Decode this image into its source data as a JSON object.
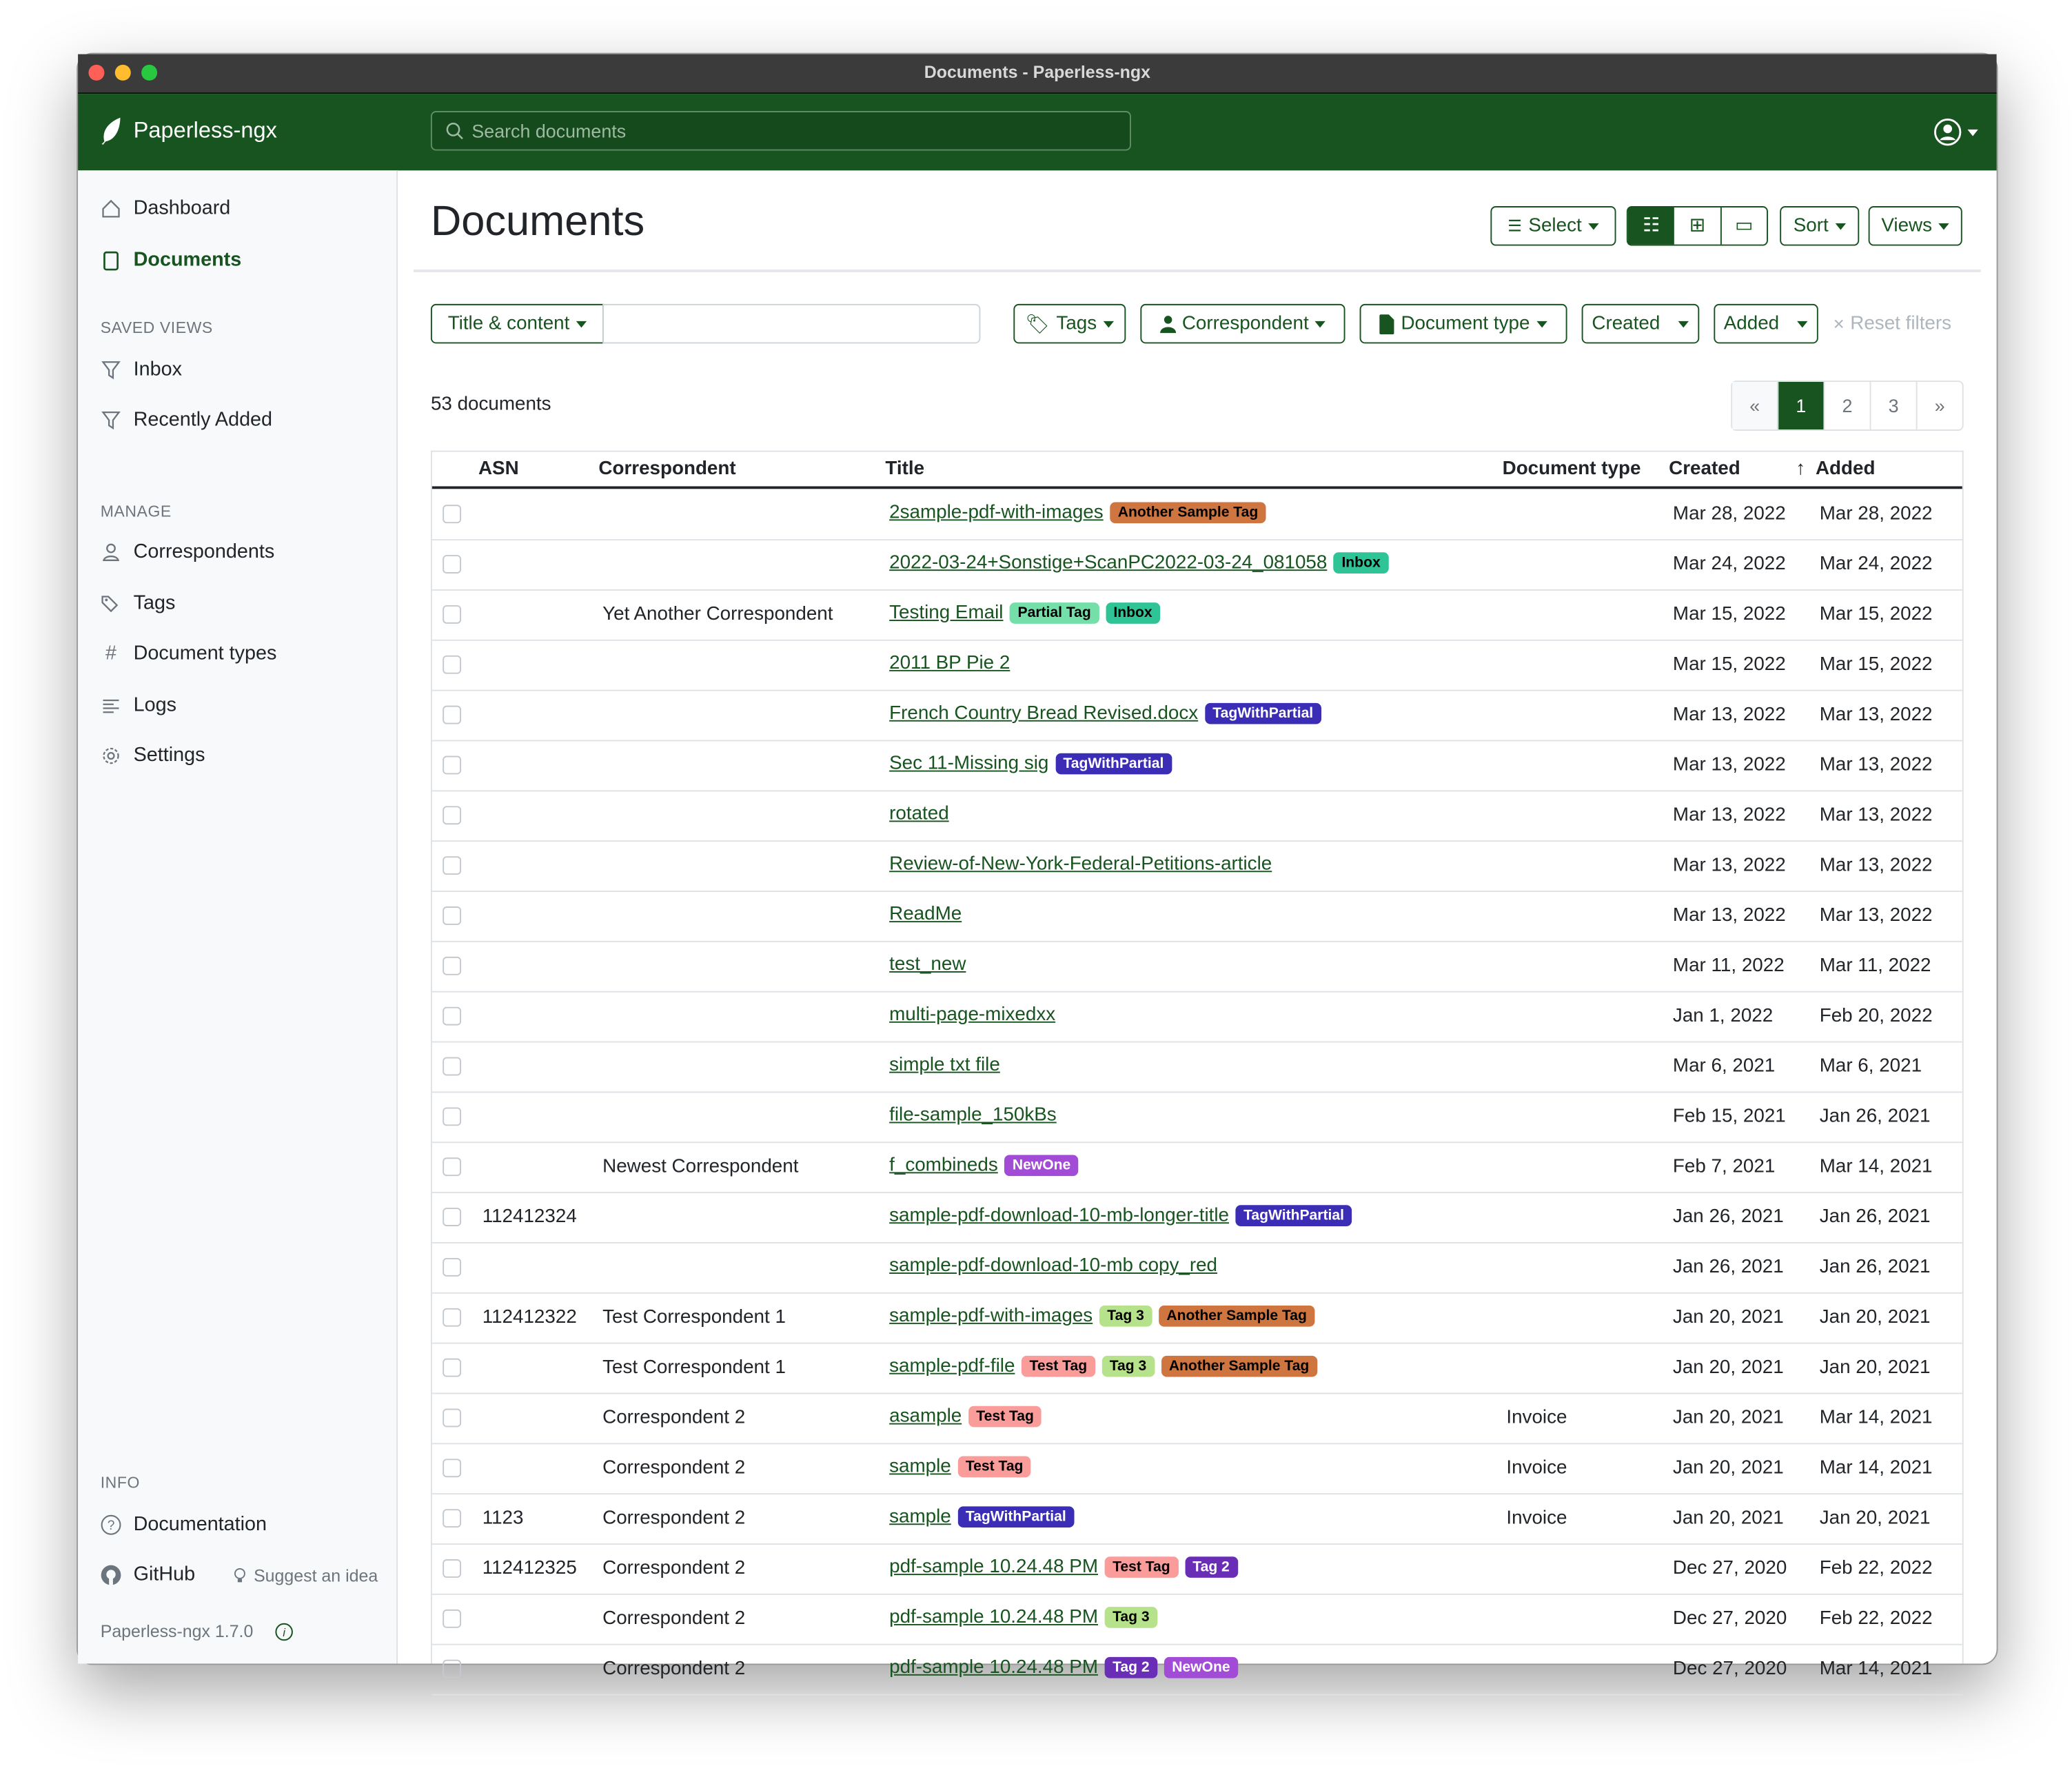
{
  "window_title": "Documents - Paperless-ngx",
  "app_name": "Paperless-ngx",
  "search_placeholder": "Search documents",
  "colors": {
    "primary": "#17541f"
  },
  "sidebar": {
    "nav": [
      {
        "label": "Dashboard",
        "icon": "house-icon"
      },
      {
        "label": "Documents",
        "icon": "files-icon",
        "active": true
      }
    ],
    "saved_views_heading": "SAVED VIEWS",
    "saved_views": [
      {
        "label": "Inbox",
        "icon": "funnel-icon"
      },
      {
        "label": "Recently Added",
        "icon": "funnel-icon"
      }
    ],
    "manage_heading": "MANAGE",
    "manage": [
      {
        "label": "Correspondents",
        "icon": "person-icon"
      },
      {
        "label": "Tags",
        "icon": "tags-icon"
      },
      {
        "label": "Document types",
        "icon": "hash-icon"
      },
      {
        "label": "Logs",
        "icon": "text-left-icon"
      },
      {
        "label": "Settings",
        "icon": "gear-icon"
      }
    ],
    "info_heading": "INFO",
    "documentation": "Documentation",
    "github": "GitHub",
    "suggest": "Suggest an idea",
    "version": "Paperless-ngx 1.7.0"
  },
  "page_title": "Documents",
  "toolbar": {
    "select": "Select",
    "sort": "Sort",
    "views": "Views",
    "display_modes": [
      "table",
      "small-cards",
      "large-cards"
    ],
    "active_mode": "table"
  },
  "filters": {
    "text_mode": "Title & content",
    "text_value": "",
    "tags": "Tags",
    "correspondent": "Correspondent",
    "document_type": "Document type",
    "created": "Created",
    "added": "Added",
    "reset": "Reset filters"
  },
  "document_count": "53 documents",
  "pagination": {
    "prev": "«",
    "pages": [
      "1",
      "2",
      "3"
    ],
    "current": "1",
    "next": "»"
  },
  "columns": {
    "asn": "ASN",
    "correspondent": "Correspondent",
    "title": "Title",
    "document_type": "Document type",
    "created": "Created",
    "added": "Added",
    "sort_indicator": "↑"
  },
  "tag_colors": {
    "Another Sample Tag": {
      "bg": "#cf7540",
      "fg": "#000000"
    },
    "Inbox": {
      "bg": "#2ec495",
      "fg": "#000000"
    },
    "Partial Tag": {
      "bg": "#74dfa8",
      "fg": "#000000"
    },
    "TagWithPartial": {
      "bg": "#3b2db5",
      "fg": "#ffffff"
    },
    "NewOne": {
      "bg": "#a24bd6",
      "fg": "#ffffff"
    },
    "Test Tag": {
      "bg": "#f99c9a",
      "fg": "#000000"
    },
    "Tag 3": {
      "bg": "#b5e28a",
      "fg": "#000000"
    },
    "Tag 2": {
      "bg": "#6a2db5",
      "fg": "#ffffff"
    }
  },
  "rows": [
    {
      "asn": "",
      "correspondent": "",
      "title": "2sample-pdf-with-images",
      "tags": [
        "Another Sample Tag"
      ],
      "type": "",
      "created": "Mar 28, 2022",
      "added": "Mar 28, 2022"
    },
    {
      "asn": "",
      "correspondent": "",
      "title": "2022-03-24+Sonstige+ScanPC2022-03-24_081058",
      "tags": [
        "Inbox"
      ],
      "type": "",
      "created": "Mar 24, 2022",
      "added": "Mar 24, 2022"
    },
    {
      "asn": "",
      "correspondent": "Yet Another Correspondent",
      "title": "Testing Email",
      "tags": [
        "Partial Tag",
        "Inbox"
      ],
      "type": "",
      "created": "Mar 15, 2022",
      "added": "Mar 15, 2022"
    },
    {
      "asn": "",
      "correspondent": "",
      "title": "2011 BP Pie 2",
      "tags": [],
      "type": "",
      "created": "Mar 15, 2022",
      "added": "Mar 15, 2022"
    },
    {
      "asn": "",
      "correspondent": "",
      "title": "French Country Bread Revised.docx",
      "tags": [
        "TagWithPartial"
      ],
      "type": "",
      "created": "Mar 13, 2022",
      "added": "Mar 13, 2022"
    },
    {
      "asn": "",
      "correspondent": "",
      "title": "Sec 11-Missing sig",
      "tags": [
        "TagWithPartial"
      ],
      "type": "",
      "created": "Mar 13, 2022",
      "added": "Mar 13, 2022"
    },
    {
      "asn": "",
      "correspondent": "",
      "title": "rotated",
      "tags": [],
      "type": "",
      "created": "Mar 13, 2022",
      "added": "Mar 13, 2022"
    },
    {
      "asn": "",
      "correspondent": "",
      "title": "Review-of-New-York-Federal-Petitions-article",
      "tags": [],
      "type": "",
      "created": "Mar 13, 2022",
      "added": "Mar 13, 2022"
    },
    {
      "asn": "",
      "correspondent": "",
      "title": "ReadMe",
      "tags": [],
      "type": "",
      "created": "Mar 13, 2022",
      "added": "Mar 13, 2022"
    },
    {
      "asn": "",
      "correspondent": "",
      "title": "test_new",
      "tags": [],
      "type": "",
      "created": "Mar 11, 2022",
      "added": "Mar 11, 2022"
    },
    {
      "asn": "",
      "correspondent": "",
      "title": "multi-page-mixedxx",
      "tags": [],
      "type": "",
      "created": "Jan 1, 2022",
      "added": "Feb 20, 2022"
    },
    {
      "asn": "",
      "correspondent": "",
      "title": "simple txt file",
      "tags": [],
      "type": "",
      "created": "Mar 6, 2021",
      "added": "Mar 6, 2021"
    },
    {
      "asn": "",
      "correspondent": "",
      "title": "file-sample_150kBs",
      "tags": [],
      "type": "",
      "created": "Feb 15, 2021",
      "added": "Jan 26, 2021"
    },
    {
      "asn": "",
      "correspondent": "Newest Correspondent",
      "title": "f_combineds",
      "tags": [
        "NewOne"
      ],
      "type": "",
      "created": "Feb 7, 2021",
      "added": "Mar 14, 2021"
    },
    {
      "asn": "112412324",
      "correspondent": "",
      "title": "sample-pdf-download-10-mb-longer-title",
      "tags": [
        "TagWithPartial"
      ],
      "type": "",
      "created": "Jan 26, 2021",
      "added": "Jan 26, 2021"
    },
    {
      "asn": "",
      "correspondent": "",
      "title": "sample-pdf-download-10-mb copy_red",
      "tags": [],
      "type": "",
      "created": "Jan 26, 2021",
      "added": "Jan 26, 2021"
    },
    {
      "asn": "112412322",
      "correspondent": "Test Correspondent 1",
      "title": "sample-pdf-with-images",
      "tags": [
        "Tag 3",
        "Another Sample Tag"
      ],
      "type": "",
      "created": "Jan 20, 2021",
      "added": "Jan 20, 2021"
    },
    {
      "asn": "",
      "correspondent": "Test Correspondent 1",
      "title": "sample-pdf-file",
      "tags": [
        "Test Tag",
        "Tag 3",
        "Another Sample Tag"
      ],
      "type": "",
      "created": "Jan 20, 2021",
      "added": "Jan 20, 2021"
    },
    {
      "asn": "",
      "correspondent": "Correspondent 2",
      "title": "asample",
      "tags": [
        "Test Tag"
      ],
      "type": "Invoice",
      "created": "Jan 20, 2021",
      "added": "Mar 14, 2021"
    },
    {
      "asn": "",
      "correspondent": "Correspondent 2",
      "title": "sample",
      "tags": [
        "Test Tag"
      ],
      "type": "Invoice",
      "created": "Jan 20, 2021",
      "added": "Mar 14, 2021"
    },
    {
      "asn": "1123",
      "correspondent": "Correspondent 2",
      "title": "sample",
      "tags": [
        "TagWithPartial"
      ],
      "type": "Invoice",
      "created": "Jan 20, 2021",
      "added": "Jan 20, 2021"
    },
    {
      "asn": "112412325",
      "correspondent": "Correspondent 2",
      "title": "pdf-sample 10.24.48 PM",
      "tags": [
        "Test Tag",
        "Tag 2"
      ],
      "type": "",
      "created": "Dec 27, 2020",
      "added": "Feb 22, 2022"
    },
    {
      "asn": "",
      "correspondent": "Correspondent 2",
      "title": "pdf-sample 10.24.48 PM",
      "tags": [
        "Tag 3"
      ],
      "type": "",
      "created": "Dec 27, 2020",
      "added": "Feb 22, 2022"
    },
    {
      "asn": "",
      "correspondent": "Correspondent 2",
      "title": "pdf-sample 10.24.48 PM",
      "tags": [
        "Tag 2",
        "NewOne"
      ],
      "type": "",
      "created": "Dec 27, 2020",
      "added": "Mar 14, 2021"
    }
  ]
}
